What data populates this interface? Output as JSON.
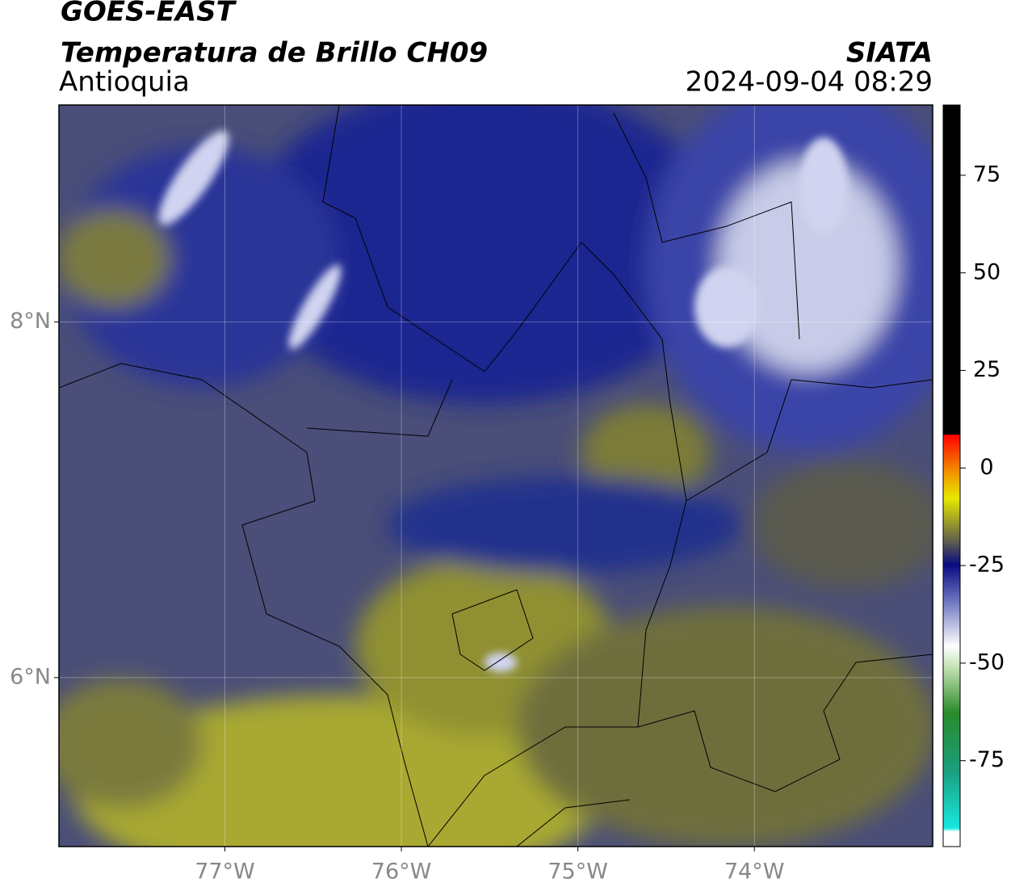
{
  "header": {
    "title": "GOES-EAST",
    "subtitle": "Temperatura de Brillo CH09",
    "region": "Antioquia",
    "source": "SIATA",
    "timestamp": "2024-09-04 08:29"
  },
  "map": {
    "xlim": [
      -77.94,
      -72.99
    ],
    "ylim": [
      5.05,
      9.22
    ],
    "xticks": [
      {
        "value": -77,
        "label": "77°W"
      },
      {
        "value": -76,
        "label": "76°W"
      },
      {
        "value": -75,
        "label": "75°W"
      },
      {
        "value": -74,
        "label": "74°W"
      }
    ],
    "yticks": [
      {
        "value": 8,
        "label": "8°N"
      },
      {
        "value": 6,
        "label": "6°N"
      }
    ]
  },
  "colorbar": {
    "range": [
      -97,
      93
    ],
    "ticks": [
      75,
      50,
      25,
      0,
      -25,
      -50,
      -75
    ]
  }
}
